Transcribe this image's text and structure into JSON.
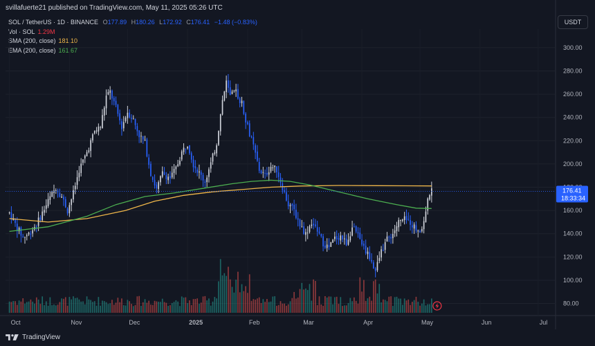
{
  "header": {
    "attribution": "svillafuerte21 published on TradingView.com, May 11, 2025 05:26 UTC"
  },
  "legend": {
    "symbol": "SOL / TetherUS · 1D · BINANCE",
    "open_label": "O",
    "open": "177.89",
    "high_label": "H",
    "high": "180.26",
    "low_label": "L",
    "low": "172.92",
    "close_label": "C",
    "close": "176.41",
    "change": "−1.48 (−0.83%)",
    "vol_label": "Vol · SOL",
    "vol": "1.29M",
    "sma_label": "SMA (200, close)",
    "sma": "181.10",
    "ema_label": "EMA (200, close)",
    "ema": "161.67"
  },
  "currency_button": "USDT",
  "price_tag": {
    "price": "176.41",
    "countdown": "18:33:34"
  },
  "footer": {
    "brand": "TradingView"
  },
  "colors": {
    "background": "#131722",
    "up": "#d1d4dc",
    "down": "#2962ff",
    "sma": "#f0b74a",
    "ema": "#4caf50",
    "vol_up": "#26a69a",
    "vol_down": "#ef5350"
  },
  "chart_data": {
    "type": "candlestick",
    "y_ticks": [
      "300.00",
      "280.00",
      "260.00",
      "240.00",
      "220.00",
      "200.00",
      "180.00",
      "160.00",
      "140.00",
      "120.00",
      "100.00",
      "80.00"
    ],
    "y_tick_values": [
      300,
      280,
      260,
      240,
      220,
      200,
      180,
      160,
      140,
      120,
      100,
      80
    ],
    "ylim": [
      72,
      316
    ],
    "x_labels": [
      "Oct",
      "Nov",
      "Dec",
      "2025",
      "Feb",
      "Mar",
      "Apr",
      "May",
      "Jun",
      "Jul"
    ],
    "x_label_days": [
      0,
      31,
      61,
      92,
      123,
      151,
      182,
      212,
      243,
      273
    ],
    "x_range_days": [
      -2,
      282
    ],
    "price_waypoints": [
      [
        0,
        158
      ],
      [
        4,
        145
      ],
      [
        7,
        137
      ],
      [
        10,
        140
      ],
      [
        14,
        148
      ],
      [
        17,
        158
      ],
      [
        20,
        168
      ],
      [
        24,
        180
      ],
      [
        27,
        172
      ],
      [
        30,
        160
      ],
      [
        33,
        175
      ],
      [
        36,
        195
      ],
      [
        40,
        210
      ],
      [
        44,
        228
      ],
      [
        47,
        232
      ],
      [
        50,
        258
      ],
      [
        52,
        262
      ],
      [
        55,
        248
      ],
      [
        58,
        232
      ],
      [
        61,
        245
      ],
      [
        64,
        238
      ],
      [
        67,
        225
      ],
      [
        70,
        218
      ],
      [
        73,
        192
      ],
      [
        76,
        178
      ],
      [
        79,
        192
      ],
      [
        83,
        188
      ],
      [
        86,
        196
      ],
      [
        89,
        210
      ],
      [
        92,
        218
      ],
      [
        95,
        200
      ],
      [
        98,
        192
      ],
      [
        101,
        185
      ],
      [
        104,
        200
      ],
      [
        107,
        218
      ],
      [
        110,
        255
      ],
      [
        112,
        270
      ],
      [
        114,
        258
      ],
      [
        117,
        262
      ],
      [
        120,
        252
      ],
      [
        123,
        232
      ],
      [
        126,
        215
      ],
      [
        129,
        195
      ],
      [
        132,
        190
      ],
      [
        135,
        198
      ],
      [
        138,
        195
      ],
      [
        141,
        180
      ],
      [
        144,
        165
      ],
      [
        147,
        160
      ],
      [
        150,
        148
      ],
      [
        153,
        140
      ],
      [
        156,
        150
      ],
      [
        159,
        142
      ],
      [
        162,
        132
      ],
      [
        165,
        128
      ],
      [
        168,
        136
      ],
      [
        171,
        138
      ],
      [
        174,
        132
      ],
      [
        177,
        145
      ],
      [
        180,
        138
      ],
      [
        183,
        128
      ],
      [
        186,
        120
      ],
      [
        189,
        108
      ],
      [
        192,
        125
      ],
      [
        195,
        135
      ],
      [
        198,
        140
      ],
      [
        201,
        150
      ],
      [
        204,
        152
      ],
      [
        207,
        150
      ],
      [
        210,
        144
      ],
      [
        213,
        144
      ],
      [
        215,
        160
      ],
      [
        217,
        175
      ],
      [
        218,
        176.41
      ]
    ],
    "sma_200": [
      [
        0,
        153
      ],
      [
        20,
        150
      ],
      [
        40,
        153
      ],
      [
        60,
        160
      ],
      [
        75,
        168
      ],
      [
        90,
        173
      ],
      [
        105,
        176
      ],
      [
        120,
        178
      ],
      [
        135,
        180
      ],
      [
        150,
        181
      ],
      [
        170,
        181.5
      ],
      [
        190,
        181.3
      ],
      [
        205,
        181.2
      ],
      [
        218,
        181.1
      ]
    ],
    "ema_200": [
      [
        0,
        142
      ],
      [
        20,
        146
      ],
      [
        40,
        155
      ],
      [
        55,
        165
      ],
      [
        70,
        172
      ],
      [
        85,
        175
      ],
      [
        100,
        179
      ],
      [
        115,
        183
      ],
      [
        125,
        185
      ],
      [
        135,
        186
      ],
      [
        145,
        185
      ],
      [
        155,
        182
      ],
      [
        170,
        176
      ],
      [
        185,
        170
      ],
      [
        200,
        165
      ],
      [
        210,
        162
      ],
      [
        218,
        161.67
      ]
    ],
    "volume_ymax": 110,
    "volume_ticks": [
      0,
      20,
      40,
      60,
      80,
      100
    ]
  }
}
